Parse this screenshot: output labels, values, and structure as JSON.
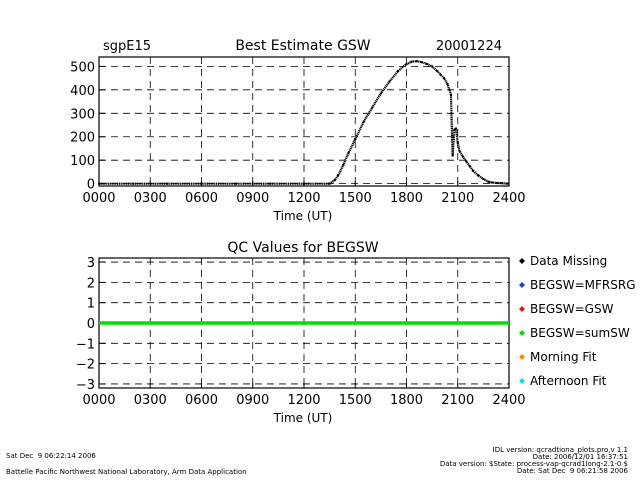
{
  "header": {
    "site": "sgpE15",
    "title": "Best Estimate GSW",
    "date": "20001224"
  },
  "chart_data": [
    {
      "type": "scatter",
      "title": "Best Estimate GSW",
      "xlabel": "Time (UT)",
      "ylabel": "",
      "xlim": [
        0,
        2400
      ],
      "ylim": [
        -10,
        540
      ],
      "xticks": [
        "0000",
        "0300",
        "0600",
        "0900",
        "1200",
        "1500",
        "1800",
        "2100",
        "2400"
      ],
      "yticks": [
        "0",
        "100",
        "200",
        "300",
        "400",
        "500"
      ],
      "grid": true,
      "series": [
        {
          "name": "BEGSW",
          "x": [
            0,
            200,
            400,
            600,
            800,
            1000,
            1200,
            1350,
            1380,
            1400,
            1430,
            1460,
            1500,
            1550,
            1600,
            1650,
            1700,
            1750,
            1800,
            1830,
            1860,
            1890,
            1920,
            1950,
            1980,
            2000,
            2020,
            2040,
            2060,
            2070,
            2080,
            2090,
            2100,
            2110,
            2130,
            2150,
            2170,
            2190,
            2220,
            2250,
            2280,
            2300,
            2330,
            2360,
            2390
          ],
          "y": [
            0,
            0,
            0,
            0,
            0,
            0,
            0,
            0,
            15,
            35,
            80,
            130,
            190,
            265,
            325,
            385,
            435,
            480,
            510,
            520,
            522,
            518,
            510,
            500,
            480,
            465,
            450,
            425,
            380,
            120,
            230,
            235,
            175,
            140,
            115,
            95,
            75,
            55,
            35,
            20,
            8,
            5,
            3,
            2,
            0
          ]
        }
      ]
    },
    {
      "type": "line",
      "title": "QC Values for BEGSW",
      "xlabel": "Time (UT)",
      "ylabel": "",
      "xlim": [
        0,
        2400
      ],
      "ylim": [
        -3.2,
        3.2
      ],
      "xticks": [
        "0000",
        "0300",
        "0600",
        "0900",
        "1200",
        "1500",
        "1800",
        "2100",
        "2400"
      ],
      "yticks": [
        "3",
        "2",
        "1",
        "0",
        "−1",
        "−2",
        "−3"
      ],
      "grid": true,
      "series": [
        {
          "name": "BEGSW=sumSW",
          "x": [
            0,
            2400
          ],
          "y": [
            0,
            0
          ]
        }
      ],
      "legend": [
        {
          "label": "Data Missing",
          "color": "#000000"
        },
        {
          "label": "BEGSW=MFRSRG",
          "color": "#1f3fe0"
        },
        {
          "label": "BEGSW=GSW",
          "color": "#ee1111"
        },
        {
          "label": "BEGSW=sumSW",
          "color": "#00e000"
        },
        {
          "label": "Morning Fit",
          "color": "#ff8800"
        },
        {
          "label": "Afternoon Fit",
          "color": "#00e8e8"
        }
      ],
      "legend_position": "right"
    }
  ],
  "footer": {
    "left_line1": "Sat Dec  9 06:22:14 2006",
    "left_line2": "Battelle Pacific Northwest National Laboratory, Arm Data Application",
    "right_lines": [
      "IDL version: qcradtiona_plots.pro,v 1.1",
      "Date: 2006/12/01 16:37:51",
      "Data version: $State: process-vap-qcrad1long-2.1-0 $",
      "Date: Sat Dec  9 06:21:58 2006"
    ]
  }
}
